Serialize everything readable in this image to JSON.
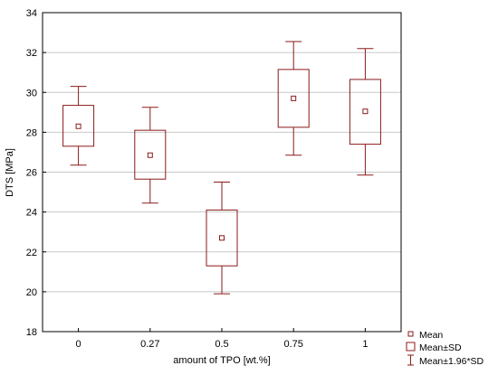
{
  "chart_data": {
    "type": "box",
    "xlabel": "amount of TPO [wt.%]",
    "ylabel": "DTS [MPa]",
    "ylim": [
      18,
      34
    ],
    "yticks": [
      18,
      20,
      22,
      24,
      26,
      28,
      30,
      32,
      34
    ],
    "grid": true,
    "legend_position": "bottom-right",
    "categories": [
      "0",
      "0.27",
      "0.5",
      "0.75",
      "1"
    ],
    "series": [
      {
        "category": "0",
        "mean": 28.3,
        "sd_low": 27.3,
        "sd_high": 29.35,
        "ci_low": 26.35,
        "ci_high": 30.3
      },
      {
        "category": "0.27",
        "mean": 26.85,
        "sd_low": 25.65,
        "sd_high": 28.1,
        "ci_low": 24.45,
        "ci_high": 29.25
      },
      {
        "category": "0.5",
        "mean": 22.7,
        "sd_low": 21.3,
        "sd_high": 24.1,
        "ci_low": 19.9,
        "ci_high": 25.5
      },
      {
        "category": "0.75",
        "mean": 29.7,
        "sd_low": 28.25,
        "sd_high": 31.15,
        "ci_low": 26.85,
        "ci_high": 32.55
      },
      {
        "category": "1",
        "mean": 29.05,
        "sd_low": 27.4,
        "sd_high": 30.65,
        "ci_low": 25.85,
        "ci_high": 32.2
      }
    ],
    "legend": [
      "Mean",
      "Mean±SD",
      "Mean±1.96*SD"
    ],
    "colors": {
      "series": "#8b1a1a",
      "grid": "#c8c8c8",
      "axis": "#000000"
    }
  }
}
